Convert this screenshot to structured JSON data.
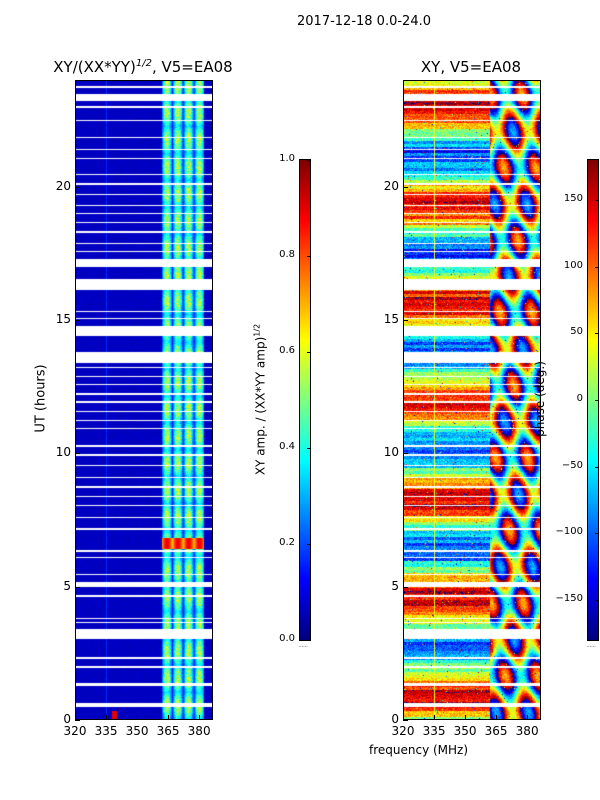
{
  "suptitle": "2017-12-18 0.0-24.0",
  "xlabel": "frequency (MHz)",
  "chart_data": [
    {
      "type": "heatmap",
      "title": "XY/(XX*YY)^1/2, V5=EA08",
      "title_main": "XY/(XX*YY)",
      "title_sup": "1/2",
      "title_tail": ", V5=EA08",
      "xlabel": "frequency (MHz)",
      "ylabel": "UT (hours)",
      "xlim": [
        320,
        386.7
      ],
      "ylim": [
        0,
        24
      ],
      "xticks": [
        "320",
        "335",
        "350",
        "365",
        "380"
      ],
      "xtick_values": [
        320,
        335,
        350,
        365,
        380
      ],
      "yticks": [
        "0",
        "5",
        "10",
        "15",
        "20"
      ],
      "ytick_values": [
        0,
        5,
        10,
        15,
        20
      ],
      "colorbar": {
        "label_main": "XY amp. / (XX*YY amp)",
        "label_sup": "1/2",
        "range": [
          0,
          1
        ],
        "ticks": [
          "0.0",
          "0.2",
          "0.4",
          "0.6",
          "0.8",
          "1.0"
        ],
        "tick_values": [
          0,
          0.2,
          0.4,
          0.6,
          0.8,
          1.0
        ],
        "colormap": "jet"
      },
      "background_level": 0.05,
      "active_band_mhz": [
        362,
        383
      ],
      "active_band_level": 0.4,
      "high_rows_hours": [
        6.4,
        6.8
      ],
      "high_level": 0.85,
      "rfi_spike": {
        "freq_mhz": 339,
        "hours": [
          0,
          0.3
        ],
        "level": 0.9
      }
    },
    {
      "type": "heatmap",
      "title": "XY, V5=EA08",
      "xlabel": "frequency (MHz)",
      "ylabel": "",
      "xlim": [
        320,
        386.7
      ],
      "ylim": [
        0,
        24
      ],
      "xticks": [
        "320",
        "335",
        "350",
        "365",
        "380"
      ],
      "xtick_values": [
        320,
        335,
        350,
        365,
        380
      ],
      "yticks": [
        "0",
        "5",
        "10",
        "15",
        "20"
      ],
      "ytick_values": [
        0,
        5,
        10,
        15,
        20
      ],
      "colorbar": {
        "label": "phase (deg.)",
        "range": [
          -180,
          180
        ],
        "ticks": [
          "−150",
          "−100",
          "−50",
          "0",
          "50",
          "100",
          "150"
        ],
        "tick_values": [
          -150,
          -100,
          -50,
          0,
          50,
          100,
          150
        ],
        "colormap": "jet"
      }
    }
  ],
  "flagged_gaps_hours": [
    [
      0.45,
      0.6
    ],
    [
      1.25,
      1.35
    ],
    [
      1.9,
      2.0
    ],
    [
      2.25,
      2.35
    ],
    [
      3.0,
      3.4
    ],
    [
      3.6,
      3.65
    ],
    [
      3.75,
      3.8
    ],
    [
      4.6,
      4.65
    ],
    [
      4.95,
      5.15
    ],
    [
      5.4,
      5.45
    ],
    [
      6.05,
      6.1
    ],
    [
      6.3,
      6.35
    ],
    [
      7.1,
      7.2
    ],
    [
      7.55,
      7.6
    ],
    [
      8.0,
      8.05
    ],
    [
      8.35,
      8.4
    ],
    [
      8.7,
      8.75
    ],
    [
      9.05,
      9.1
    ],
    [
      9.5,
      9.55
    ],
    [
      9.9,
      9.95
    ],
    [
      10.25,
      10.3
    ],
    [
      10.9,
      10.95
    ],
    [
      11.2,
      11.25
    ],
    [
      11.55,
      11.6
    ],
    [
      11.9,
      11.95
    ],
    [
      12.2,
      12.25
    ],
    [
      12.55,
      12.6
    ],
    [
      12.85,
      12.9
    ],
    [
      13.2,
      13.25
    ],
    [
      13.4,
      13.8
    ],
    [
      14.4,
      14.8
    ],
    [
      15.05,
      15.1
    ],
    [
      15.3,
      15.35
    ],
    [
      16.15,
      16.55
    ],
    [
      17.0,
      17.3
    ],
    [
      17.55,
      17.6
    ],
    [
      17.85,
      17.9
    ],
    [
      18.3,
      18.35
    ],
    [
      18.65,
      18.7
    ],
    [
      19.0,
      19.05
    ],
    [
      19.3,
      19.35
    ],
    [
      19.7,
      19.75
    ],
    [
      20.1,
      20.15
    ],
    [
      20.45,
      20.5
    ],
    [
      21.05,
      21.1
    ],
    [
      21.4,
      21.45
    ],
    [
      21.85,
      21.9
    ],
    [
      22.5,
      22.55
    ],
    [
      23.0,
      23.05
    ],
    [
      23.25,
      23.5
    ],
    [
      23.75,
      23.8
    ]
  ],
  "colors": {
    "axis": "#000000",
    "flagged": "#ffffff"
  }
}
